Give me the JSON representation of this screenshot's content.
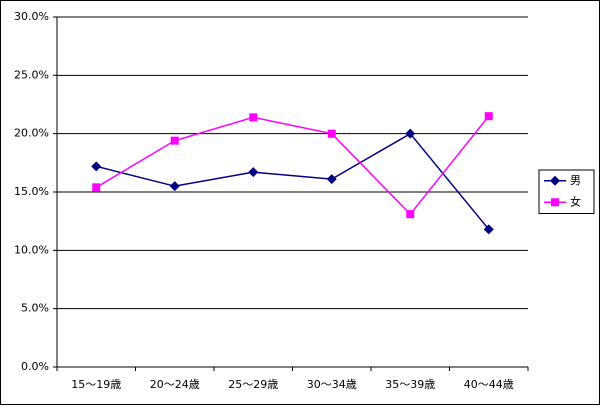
{
  "chart_data": {
    "type": "line",
    "categories": [
      "15～19歳",
      "20～24歳",
      "25～29歳",
      "30～34歳",
      "35～39歳",
      "40～44歳"
    ],
    "series": [
      {
        "name": "男",
        "color": "#000080",
        "marker": "diamond",
        "values": [
          17.2,
          15.5,
          16.7,
          16.1,
          20.0,
          11.8
        ]
      },
      {
        "name": "女",
        "color": "#ff00ff",
        "marker": "square",
        "values": [
          15.4,
          19.4,
          21.4,
          20.0,
          13.1,
          21.5
        ]
      }
    ],
    "ylim": [
      0,
      30
    ],
    "yticks": [
      {
        "value": 0,
        "label": "0.0%"
      },
      {
        "value": 5,
        "label": "5.0%"
      },
      {
        "value": 10,
        "label": "10.0%"
      },
      {
        "value": 15,
        "label": "15.0%"
      },
      {
        "value": 20,
        "label": "20.0%"
      },
      {
        "value": 25,
        "label": "25.0%"
      },
      {
        "value": 30,
        "label": "30.0%"
      }
    ],
    "grid": true,
    "legend": "right"
  }
}
